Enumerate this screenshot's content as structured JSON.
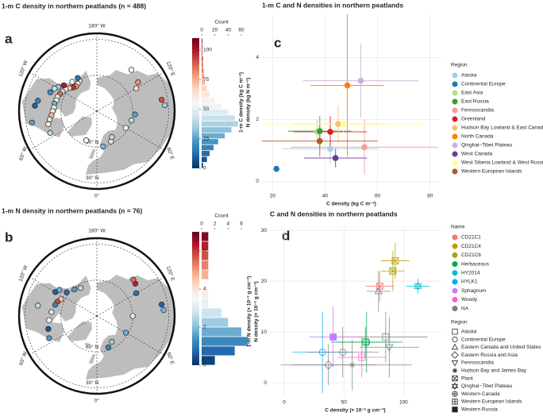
{
  "chart_data": [
    {
      "type": "map",
      "panel_label": "a",
      "title": "1-m C density in northern peatlands (n = 488)",
      "colorscale": [
        "#053061",
        "#2166ac",
        "#4393c3",
        "#92c5de",
        "#d1e5f0",
        "#f7f7f7",
        "#fddbc7",
        "#f4a582",
        "#d6604d",
        "#b2182b",
        "#67001f"
      ],
      "clim": [
        0,
        110
      ],
      "cticks": [
        0,
        25,
        50,
        75,
        100
      ],
      "hist_title": "Count",
      "count_lim": [
        0,
        60
      ],
      "count_ticks": [
        0,
        20,
        40,
        60
      ],
      "bins": [
        0,
        5,
        10,
        15,
        20,
        25,
        30,
        35,
        40,
        45,
        50,
        55,
        60,
        65,
        70,
        75,
        80,
        85,
        90,
        95,
        100,
        105,
        110
      ],
      "counts": [
        2,
        8,
        12,
        18,
        25,
        35,
        45,
        55,
        50,
        40,
        30,
        20,
        12,
        8,
        5,
        4,
        3,
        2,
        2,
        1,
        1,
        1
      ],
      "lon_ticks": [
        {
          "value": 180,
          "label": "180° W"
        },
        {
          "value": 120,
          "label": "120° E"
        },
        {
          "value": 60,
          "label": "60° E"
        },
        {
          "value": 0,
          "label": "0°"
        },
        {
          "value": -60,
          "label": "60° W"
        },
        {
          "value": -120,
          "label": "120° W"
        }
      ],
      "lat_ticks": [
        {
          "value": 60,
          "label": "60° N"
        },
        {
          "value": 30,
          "label": "30° N"
        }
      ],
      "points": {
        "lon": [
          -150,
          -145,
          -140,
          -135,
          -130,
          -125,
          -120,
          -115,
          -110,
          -105,
          -100,
          -95,
          -90,
          -85,
          -128,
          -122,
          -118,
          -112,
          -140,
          -150,
          -80,
          -75,
          -65,
          -20,
          10,
          25,
          30,
          60,
          75,
          85,
          120,
          125,
          140,
          100,
          95,
          -100,
          -95,
          -80
        ],
        "lat": [
          61,
          62,
          63,
          62,
          60,
          58,
          57,
          56,
          55,
          55,
          54,
          54,
          53,
          52,
          55,
          52,
          50,
          48,
          58,
          58,
          50,
          48,
          47,
          64,
          60,
          62,
          65,
          62,
          60,
          58,
          52,
          48,
          45,
          35,
          33,
          40,
          38,
          35
        ],
        "values": [
          45,
          60,
          80,
          95,
          70,
          55,
          40,
          85,
          65,
          50,
          30,
          48,
          62,
          75,
          100,
          35,
          42,
          20,
          52,
          15,
          45,
          60,
          40,
          55,
          30,
          45,
          70,
          52,
          40,
          25,
          65,
          80,
          55,
          90,
          35,
          18,
          10,
          25
        ]
      }
    },
    {
      "type": "map",
      "panel_label": "b",
      "title": "1-m N density in northern peatlands (n = 76)",
      "colorscale": [
        "#053061",
        "#2166ac",
        "#4393c3",
        "#92c5de",
        "#d1e5f0",
        "#f7f7f7",
        "#fddbc7",
        "#f4a582",
        "#d6604d",
        "#b2182b",
        "#67001f"
      ],
      "clim": [
        0,
        7
      ],
      "cticks": [
        0,
        2,
        4,
        6
      ],
      "hist_title": "Count",
      "count_lim": [
        0,
        6
      ],
      "count_ticks": [
        0,
        2,
        4,
        6
      ],
      "bins": [
        0,
        0.5,
        1,
        1.5,
        2,
        2.5,
        3,
        3.5,
        4,
        4.5,
        5,
        5.5,
        6,
        6.5,
        7
      ],
      "counts": [
        2,
        5,
        7,
        6,
        4,
        3,
        1,
        1,
        0,
        1,
        1,
        1,
        1,
        1
      ],
      "lon_ticks": [
        {
          "value": 180,
          "label": "180° W"
        },
        {
          "value": 120,
          "label": "120° E"
        },
        {
          "value": 60,
          "label": "60° E"
        },
        {
          "value": 0,
          "label": "0°"
        },
        {
          "value": -60,
          "label": "60° W"
        },
        {
          "value": -120,
          "label": "120° W"
        }
      ],
      "lat_ticks": [
        {
          "value": 60,
          "label": "60° N"
        },
        {
          "value": 30,
          "label": "30° N"
        }
      ],
      "points": {
        "lon": [
          -150,
          -140,
          -128,
          -115,
          -110,
          -105,
          -95,
          -85,
          -75,
          -65,
          -120,
          -125,
          20,
          30,
          60,
          90,
          120,
          130,
          135,
          100,
          95,
          -100
        ],
        "lat": [
          63,
          61,
          58,
          57,
          55,
          54,
          52,
          50,
          48,
          46,
          50,
          52,
          62,
          65,
          62,
          60,
          52,
          48,
          47,
          35,
          34,
          40
        ],
        "values": [
          2.5,
          1.5,
          0.8,
          4.5,
          5.8,
          1.2,
          2.8,
          3.5,
          0.5,
          1.5,
          0.6,
          1.8,
          1.2,
          2.2,
          1.8,
          3.0,
          0.9,
          6.2,
          5.5,
          0.7,
          1.9,
          2.6
        ]
      }
    },
    {
      "type": "errorscatter",
      "panel_label": "c",
      "title": "1-m C and N densities in northern peatlands",
      "x_label": "C density (kg C m⁻²)",
      "y_label": "N density (kg N m⁻²)",
      "y_label_2": "1-m C density (kg C m⁻²)",
      "xlim": [
        16,
        84
      ],
      "xticks": [
        20,
        40,
        60,
        80
      ],
      "ylim": [
        -0.3,
        5.4
      ],
      "yticks": [
        0,
        2,
        4
      ],
      "grid": true,
      "legend_title": "Region",
      "categories": [
        "Alaska",
        "Continental Europe",
        "East Asia",
        "East Russia",
        "Fennoscandia",
        "Greenland",
        "Hudson Bay Lowland & East Canada",
        "North Canada",
        "Qinghai−Tibet Plateau",
        "West Canada",
        "West Siberia Lowland & West Russia",
        "Western European Islands"
      ],
      "colors": [
        "#a6cee3",
        "#1f78b4",
        "#b2df8a",
        "#33a02c",
        "#fb9a99",
        "#e31a1c",
        "#fdbf6f",
        "#ff7f00",
        "#cab2d6",
        "#6a3d9a",
        "#ffff99",
        "#b15928"
      ],
      "x": [
        42,
        21.5,
        37,
        38,
        55,
        42,
        45,
        48.5,
        53.6,
        44,
        47,
        38
      ],
      "y": [
        1.05,
        0.4,
        1.6,
        1.62,
        1.1,
        1.6,
        1.85,
        3.1,
        3.25,
        0.75,
        1.85,
        1.3
      ],
      "xerr": [
        18,
        null,
        10,
        12,
        28,
        14,
        18,
        14,
        22,
        12,
        30,
        22
      ],
      "yerr": [
        0.5,
        null,
        0.4,
        0.5,
        0.9,
        0.5,
        0.6,
        2.3,
        1.2,
        0.3,
        0.4,
        0.5
      ]
    },
    {
      "type": "shapescatter",
      "panel_label": "d",
      "title": "C and N densities in northern peatlands",
      "x_label": "C density (× 10⁻² g cm⁻³)",
      "y_label": "N density (× 10⁻² g cm⁻³)",
      "y_label_2": "1-m N density (× 10⁻² g cm⁻³)",
      "xlim": [
        -12,
        131
      ],
      "xticks": [
        0,
        50,
        100
      ],
      "ylim": [
        -2.8,
        30.8
      ],
      "yticks": [
        0,
        10,
        20,
        30
      ],
      "grid": true,
      "name_legend": {
        "title": "Name",
        "items": [
          "CD21C1",
          "CD21C4",
          "CD21C6",
          "Herbaceous",
          "HY2014",
          "HYLK1",
          "Sphagnum",
          "Woody",
          "NA"
        ],
        "colors": [
          "#f8766d",
          "#c49a00",
          "#a3a500",
          "#00a651",
          "#00bfc4",
          "#00a9ff",
          "#c77cff",
          "#ff61cc",
          "#7f7f7f"
        ]
      },
      "region_legend": {
        "title": "Region",
        "items": [
          "Alaska",
          "Continental Europe",
          "Eastern Canada and United States",
          "Eastern Russia and Asia",
          "Fennoscandia",
          "Hudson Bay and James Bay",
          "Plant",
          "Qinghai−Tibet Plateau",
          "Western Canada",
          "Western European Islands",
          "Western Russia"
        ],
        "shapes": [
          "square",
          "circle",
          "triangle",
          "diamond",
          "triangle-down",
          "asterisk",
          "square-x",
          "star",
          "circle-plus",
          "square-plus",
          "square-filled"
        ]
      },
      "points": {
        "x": [
          93,
          91,
          112,
          80,
          79,
          69,
          85,
          88,
          41,
          32,
          65,
          37,
          57,
          49,
          68
        ],
        "y": [
          24,
          22,
          19,
          19,
          18,
          8,
          9,
          7,
          9,
          6,
          5,
          3.5,
          3.5,
          6,
          8
        ],
        "xerr": [
          12,
          10,
          10,
          12,
          10,
          30,
          35,
          25,
          20,
          25,
          20,
          40,
          50,
          30,
          25
        ],
        "yerr": [
          3.5,
          4,
          1.5,
          3,
          4,
          6,
          5,
          6,
          6,
          8,
          4,
          4,
          5,
          5,
          3
        ],
        "name": [
          "CD21C4",
          "CD21C6",
          "HY2014",
          "CD21C1",
          "NA",
          "Herbaceous",
          "NA",
          "NA",
          "Sphagnum",
          "HYLK1",
          "Woody",
          "NA",
          "NA",
          "NA",
          "Herbaceous"
        ],
        "region": [
          "Plant",
          "Plant",
          "Qinghai−Tibet Plateau",
          "Plant",
          "Eastern Canada and United States",
          "Western Canada",
          "Alaska",
          "Fennoscandia",
          "Western Russia",
          "Continental Europe",
          "Western European Islands",
          "Eastern Russia and Asia",
          "Hudson Bay and James Bay",
          "Continental Europe",
          "Alaska"
        ]
      }
    }
  ]
}
